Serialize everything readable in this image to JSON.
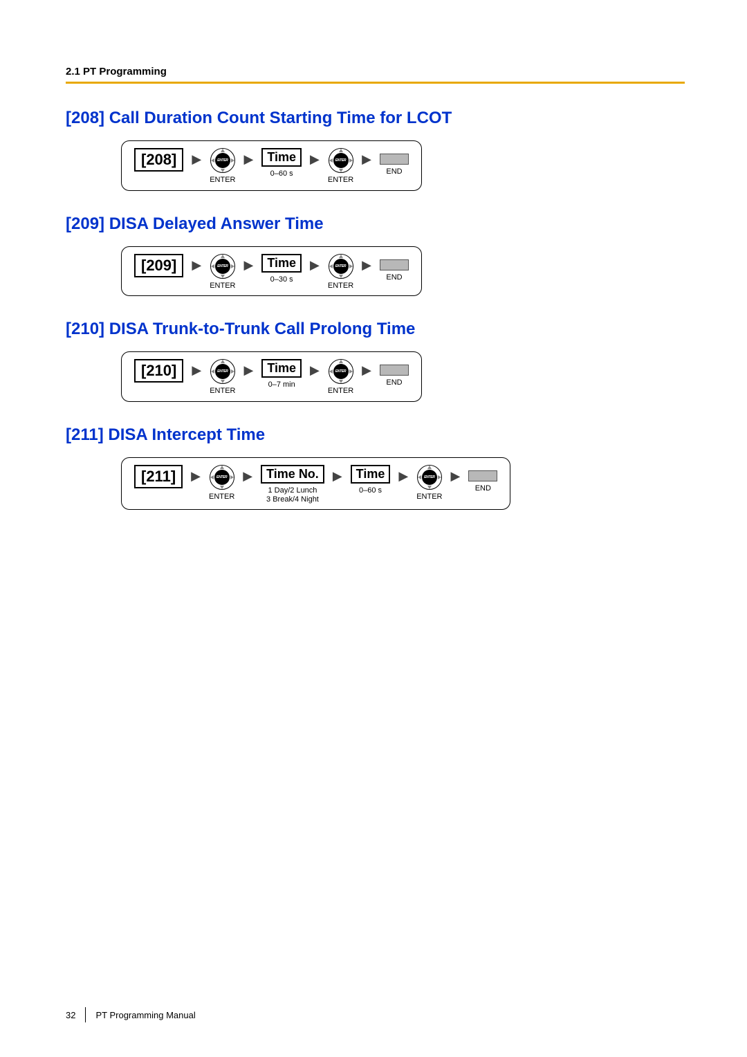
{
  "header": {
    "section": "2.1 PT Programming"
  },
  "rule_color": "#e8a800",
  "title_color": "#0033cc",
  "sections": {
    "s208": {
      "title": "[208] Call Duration Count Starting Time for LCOT",
      "code": "[208]",
      "time_label": "Time",
      "range": "0–60 s",
      "enter": "ENTER",
      "end": "END"
    },
    "s209": {
      "title": "[209] DISA Delayed Answer Time",
      "code": "[209]",
      "time_label": "Time",
      "range": "0–30 s",
      "enter": "ENTER",
      "end": "END"
    },
    "s210": {
      "title": "[210] DISA Trunk-to-Trunk Call Prolong Time",
      "code": "[210]",
      "time_label": "Time",
      "range": "0–7 min",
      "enter": "ENTER",
      "end": "END"
    },
    "s211": {
      "title": "[211] DISA Intercept Time",
      "code": "[211]",
      "timeno_label": "Time No.",
      "timeno_range": "1 Day/2 Lunch\n3 Break/4 Night",
      "time_label": "Time",
      "range": "0–60 s",
      "enter": "ENTER",
      "end": "END"
    }
  },
  "enter_button_text": "ENTER",
  "footer": {
    "page": "32",
    "title": "PT Programming Manual"
  }
}
